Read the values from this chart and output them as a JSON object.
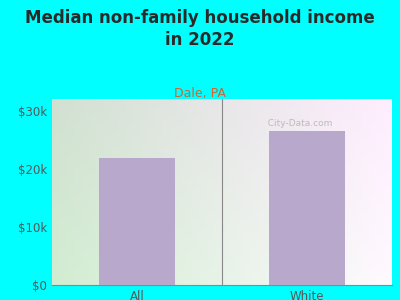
{
  "title": "Median non-family household income\nin 2022",
  "subtitle": "Dale, PA",
  "categories": [
    "All",
    "White"
  ],
  "values": [
    21875,
    26500
  ],
  "bar_color": "#b8a8cc",
  "background_color": "#00FFFF",
  "title_color": "#2a2a2a",
  "subtitle_color": "#cc6633",
  "tick_label_color": "#555555",
  "yticks": [
    0,
    10000,
    20000,
    30000
  ],
  "ytick_labels": [
    "$0",
    "$10k",
    "$20k",
    "$30k"
  ],
  "ylim": [
    0,
    32000
  ],
  "title_fontsize": 12,
  "subtitle_fontsize": 9,
  "tick_fontsize": 8.5,
  "watermark": "  City-Data.com",
  "plot_grad_left": "#d4edcc",
  "plot_grad_right": "#f0f5ee"
}
